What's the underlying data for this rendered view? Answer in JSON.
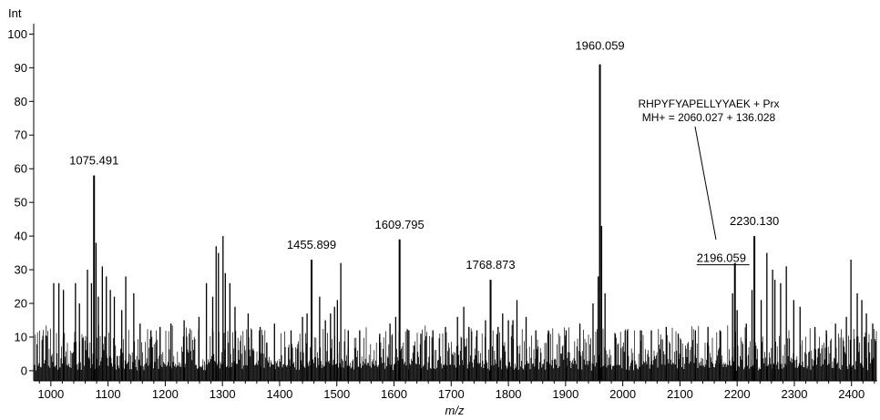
{
  "chart_data": {
    "type": "bar",
    "xlabel": "m/z",
    "ylabel": "Int",
    "xlim": [
      970,
      2445
    ],
    "ylim": [
      -3,
      102
    ],
    "x_ticks": [
      1000,
      1100,
      1200,
      1300,
      1400,
      1500,
      1600,
      1700,
      1800,
      1900,
      2000,
      2100,
      2200,
      2300,
      2400
    ],
    "y_ticks": [
      0,
      10,
      20,
      30,
      40,
      50,
      60,
      70,
      80,
      90,
      100
    ],
    "major_peaks": [
      {
        "mz": 1075.491,
        "intensity": 58,
        "label": "1075.491"
      },
      {
        "mz": 1455.899,
        "intensity": 33,
        "label": "1455.899"
      },
      {
        "mz": 1609.795,
        "intensity": 39,
        "label": "1609.795"
      },
      {
        "mz": 1768.873,
        "intensity": 27,
        "label": "1768.873"
      },
      {
        "mz": 1960.059,
        "intensity": 91,
        "label": "1960.059"
      },
      {
        "mz": 2196.059,
        "intensity": 32,
        "label": "2196.059"
      },
      {
        "mz": 2230.13,
        "intensity": 40,
        "label": "2230.130"
      }
    ],
    "peaks": [
      [
        1005,
        26
      ],
      [
        1014,
        26
      ],
      [
        1022,
        24
      ],
      [
        1043,
        26
      ],
      [
        1050,
        20
      ],
      [
        1064,
        30
      ],
      [
        1071,
        26
      ],
      [
        1079,
        38
      ],
      [
        1083,
        22
      ],
      [
        1090,
        31
      ],
      [
        1097,
        28
      ],
      [
        1104,
        24
      ],
      [
        1111,
        22
      ],
      [
        1124,
        18
      ],
      [
        1131,
        28
      ],
      [
        1145,
        23
      ],
      [
        1156,
        14
      ],
      [
        1175,
        12
      ],
      [
        1191,
        13
      ],
      [
        1210,
        14
      ],
      [
        1233,
        15
      ],
      [
        1259,
        16
      ],
      [
        1272,
        26
      ],
      [
        1283,
        22
      ],
      [
        1289,
        37
      ],
      [
        1293,
        35
      ],
      [
        1301,
        40
      ],
      [
        1305,
        29
      ],
      [
        1313,
        26
      ],
      [
        1322,
        19
      ],
      [
        1345,
        17
      ],
      [
        1366,
        13
      ],
      [
        1391,
        14
      ],
      [
        1420,
        12
      ],
      [
        1440,
        16
      ],
      [
        1448,
        17
      ],
      [
        1470,
        22
      ],
      [
        1480,
        15
      ],
      [
        1489,
        17
      ],
      [
        1496,
        19
      ],
      [
        1501,
        21
      ],
      [
        1507,
        32
      ],
      [
        1520,
        12
      ],
      [
        1540,
        12
      ],
      [
        1575,
        11
      ],
      [
        1593,
        14
      ],
      [
        1603,
        16
      ],
      [
        1626,
        12
      ],
      [
        1647,
        11
      ],
      [
        1668,
        12
      ],
      [
        1690,
        13
      ],
      [
        1711,
        16
      ],
      [
        1722,
        19
      ],
      [
        1731,
        13
      ],
      [
        1745,
        12
      ],
      [
        1760,
        15
      ],
      [
        1782,
        13
      ],
      [
        1790,
        17
      ],
      [
        1800,
        15
      ],
      [
        1808,
        15
      ],
      [
        1815,
        21
      ],
      [
        1831,
        16
      ],
      [
        1848,
        12
      ],
      [
        1870,
        12
      ],
      [
        1901,
        12
      ],
      [
        1925,
        14
      ],
      [
        1948,
        20
      ],
      [
        1957,
        28
      ],
      [
        1963,
        43
      ],
      [
        1969,
        23
      ],
      [
        1987,
        11
      ],
      [
        2008,
        12
      ],
      [
        2031,
        12
      ],
      [
        2050,
        12
      ],
      [
        2076,
        13
      ],
      [
        2097,
        11
      ],
      [
        2127,
        12
      ],
      [
        2149,
        13
      ],
      [
        2170,
        12
      ],
      [
        2192,
        23
      ],
      [
        2200,
        18
      ],
      [
        2216,
        14
      ],
      [
        2226,
        24
      ],
      [
        2242,
        21
      ],
      [
        2252,
        35
      ],
      [
        2262,
        30
      ],
      [
        2266,
        27
      ],
      [
        2276,
        26
      ],
      [
        2286,
        31
      ],
      [
        2299,
        21
      ],
      [
        2310,
        19
      ],
      [
        2336,
        13
      ],
      [
        2356,
        12
      ],
      [
        2372,
        14
      ],
      [
        2391,
        16
      ],
      [
        2399,
        33
      ],
      [
        2410,
        23
      ],
      [
        2418,
        21
      ],
      [
        2426,
        17
      ],
      [
        2437,
        14
      ]
    ],
    "annotation": {
      "line1": "RHPYFYAPELLYYAEK + Prx",
      "line2": "MH+ = 2060.027 + 136.028"
    }
  }
}
